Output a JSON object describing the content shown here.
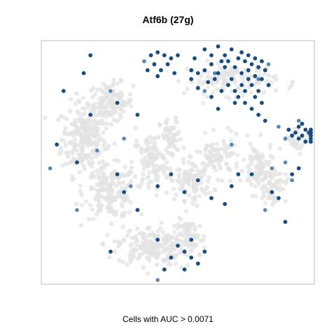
{
  "chart_data": {
    "type": "scatter",
    "title": "Atf6b (27g)",
    "caption": "Cells with AUC > 0.0071",
    "xlim": [
      -40,
      40
    ],
    "ylim": [
      -40,
      40
    ],
    "grid": false,
    "colors": {
      "background_cells": "#e3e3e3",
      "positive_cells": "#184d80",
      "mid_cells": "#4a7aa8",
      "frame": "#bdbdbd"
    },
    "background_clusters": [
      {
        "cx": -28,
        "cy": 8,
        "sx": 6,
        "sy": 11,
        "n": 230
      },
      {
        "cx": -20,
        "cy": 20,
        "sx": 6,
        "sy": 6,
        "n": 130
      },
      {
        "cx": -20,
        "cy": -10,
        "sx": 7,
        "sy": 8,
        "n": 180
      },
      {
        "cx": -8,
        "cy": 0,
        "sx": 5,
        "sy": 9,
        "n": 110
      },
      {
        "cx": -8,
        "cy": -28,
        "sx": 9,
        "sy": 6,
        "n": 190
      },
      {
        "cx": -2,
        "cy": 8,
        "sx": 3,
        "sy": 6,
        "n": 60
      },
      {
        "cx": 4,
        "cy": -6,
        "sx": 6,
        "sy": 6,
        "n": 110
      },
      {
        "cx": 4,
        "cy": -26,
        "sx": 4,
        "sy": 6,
        "n": 70
      },
      {
        "cx": 16,
        "cy": 28,
        "sx": 12,
        "sy": 5,
        "n": 130
      },
      {
        "cx": 12,
        "cy": 2,
        "sx": 6,
        "sy": 6,
        "n": 90
      },
      {
        "cx": 24,
        "cy": -2,
        "sx": 4,
        "sy": 8,
        "n": 80
      },
      {
        "cx": 28,
        "cy": -8,
        "sx": 4,
        "sy": 5,
        "n": 60
      },
      {
        "cx": 36,
        "cy": 8,
        "sx": 4,
        "sy": 4,
        "n": 40
      }
    ],
    "positive_points": [
      [
        -8,
        36
      ],
      [
        -6,
        37
      ],
      [
        -4,
        36
      ],
      [
        -2,
        35
      ],
      [
        -7,
        33
      ],
      [
        -3,
        33
      ],
      [
        0,
        36
      ],
      [
        -5,
        31
      ],
      [
        -1,
        30
      ],
      [
        -9,
        31
      ],
      [
        -6,
        29
      ],
      [
        5,
        35
      ],
      [
        8,
        38
      ],
      [
        10,
        36
      ],
      [
        12,
        39
      ],
      [
        14,
        36
      ],
      [
        15,
        34
      ],
      [
        16,
        38
      ],
      [
        18,
        35
      ],
      [
        19,
        37
      ],
      [
        20,
        34
      ],
      [
        21,
        36
      ],
      [
        22,
        33
      ],
      [
        23,
        35
      ],
      [
        24,
        32
      ],
      [
        25,
        34
      ],
      [
        26,
        31
      ],
      [
        17,
        32
      ],
      [
        19,
        30
      ],
      [
        21,
        31
      ],
      [
        23,
        29
      ],
      [
        25,
        28
      ],
      [
        14,
        32
      ],
      [
        12,
        30
      ],
      [
        10,
        33
      ],
      [
        8,
        31
      ],
      [
        6,
        30
      ],
      [
        4,
        31
      ],
      [
        22,
        26
      ],
      [
        24,
        24
      ],
      [
        19,
        26
      ],
      [
        18,
        22
      ],
      [
        20,
        20
      ],
      [
        22,
        18
      ],
      [
        24,
        16
      ],
      [
        26,
        14
      ],
      [
        15,
        26
      ],
      [
        13,
        24
      ],
      [
        11,
        28
      ],
      [
        9,
        27
      ],
      [
        16,
        28
      ],
      [
        6,
        25
      ],
      [
        4,
        28
      ],
      [
        10,
        22
      ],
      [
        12,
        18
      ],
      [
        17,
        24
      ],
      [
        20,
        24
      ],
      [
        23,
        22
      ],
      [
        25,
        20
      ],
      [
        27,
        26
      ],
      [
        21,
        28
      ],
      [
        13,
        34
      ],
      [
        17,
        20
      ],
      [
        33,
        11
      ],
      [
        35,
        10
      ],
      [
        36,
        12
      ],
      [
        37,
        9
      ],
      [
        38,
        11
      ],
      [
        39,
        10
      ],
      [
        40,
        9
      ],
      [
        41,
        11
      ],
      [
        42,
        10
      ],
      [
        43,
        9
      ],
      [
        36,
        8
      ],
      [
        38,
        7
      ],
      [
        40,
        7
      ],
      [
        34,
        9
      ],
      [
        42,
        8
      ],
      [
        37,
        13
      ],
      [
        44,
        10
      ],
      [
        -34,
        24
      ],
      [
        -28,
        30
      ],
      [
        -26,
        36
      ],
      [
        -18,
        20
      ],
      [
        -12,
        16
      ],
      [
        -26,
        16
      ],
      [
        -36,
        6
      ],
      [
        -30,
        0
      ],
      [
        -18,
        -4
      ],
      [
        -16,
        -10
      ],
      [
        -12,
        -16
      ],
      [
        -6,
        -8
      ],
      [
        -2,
        -4
      ],
      [
        6,
        -6
      ],
      [
        2,
        -10
      ],
      [
        10,
        -12
      ],
      [
        14,
        -14
      ],
      [
        16,
        -8
      ],
      [
        18,
        -4
      ],
      [
        22,
        -4
      ],
      [
        28,
        -10
      ],
      [
        30,
        -12
      ],
      [
        32,
        -20
      ],
      [
        34,
        -4
      ],
      [
        36,
        -2
      ],
      [
        0,
        -28
      ],
      [
        2,
        -30
      ],
      [
        4,
        -32
      ],
      [
        6,
        -34
      ],
      [
        8,
        -30
      ],
      [
        -2,
        -32
      ],
      [
        -4,
        -36
      ],
      [
        2,
        -36
      ],
      [
        -20,
        -30
      ],
      [
        -6,
        -26
      ],
      [
        4,
        -26
      ]
    ],
    "mid_points": [
      [
        -24,
        4
      ],
      [
        -16,
        8
      ],
      [
        -14,
        -8
      ],
      [
        -6,
        -40
      ],
      [
        16,
        6
      ],
      [
        34,
        -6
      ],
      [
        26,
        -16
      ],
      [
        32,
        0
      ],
      [
        -10,
        34
      ],
      [
        11,
        30
      ],
      [
        27,
        33
      ],
      [
        24,
        28
      ],
      [
        8,
        24
      ],
      [
        30,
        12
      ],
      [
        32,
        8
      ],
      [
        36,
        14
      ],
      [
        -38,
        -2
      ],
      [
        -20,
        24
      ],
      [
        28,
        -2
      ],
      [
        -30,
        -16
      ]
    ]
  }
}
